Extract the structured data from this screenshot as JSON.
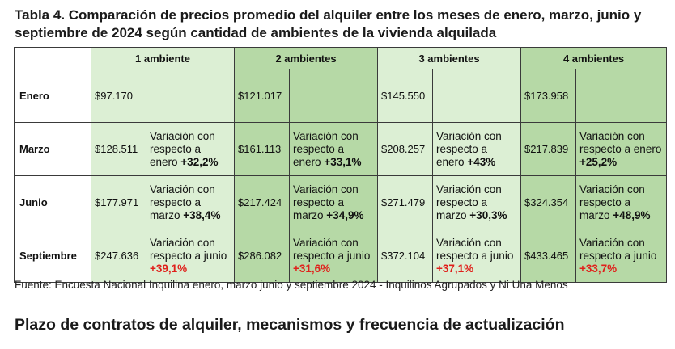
{
  "title": "Tabla 4. Comparación de precios promedio del alquiler entre los meses de enero, marzo, junio y septiembre de 2024 según cantidad de ambientes de la vivienda alquilada",
  "headers": [
    "1 ambiente",
    "2 ambientes",
    "3 ambientes",
    "4 ambientes"
  ],
  "rows": [
    {
      "label": "Enero",
      "cells": [
        {
          "price": "$97.170"
        },
        {
          "price": "$121.017"
        },
        {
          "price": "$145.550"
        },
        {
          "price": "$173.958"
        }
      ]
    },
    {
      "label": "Marzo",
      "cells": [
        {
          "price": "$128.511",
          "var_text": "Variación con respecto a enero",
          "var_value": "+32,2%"
        },
        {
          "price": "$161.113",
          "var_text": "Variación con respecto a enero",
          "var_value": "+33,1%"
        },
        {
          "price": "$208.257",
          "var_text": "Variación con respecto a enero",
          "var_value": "+43%"
        },
        {
          "price": "$217.839",
          "var_text": "Variación con respecto a enero",
          "var_value": "+25,2%"
        }
      ]
    },
    {
      "label": "Junio",
      "cells": [
        {
          "price": "$177.971",
          "var_text": "Variación con respecto a marzo",
          "var_value": "+38,4%"
        },
        {
          "price": "$217.424",
          "var_text": "Variación con respecto a marzo",
          "var_value": "+34,9%"
        },
        {
          "price": "$271.479",
          "var_text": "Variación con respecto a marzo",
          "var_value": "+30,3%"
        },
        {
          "price": "$324.354",
          "var_text": "Variación con respecto a marzo",
          "var_value": "+48,9%"
        }
      ]
    },
    {
      "label": "Septiembre",
      "cells": [
        {
          "price": "$247.636",
          "var_text": "Variación con respecto a junio",
          "var_value": "+39,1%"
        },
        {
          "price": "$286.082",
          "var_text": "Variación con respecto a junio",
          "var_value": "+31,6%"
        },
        {
          "price": "$372.104",
          "var_text": "Variación con respecto a junio",
          "var_value": "+37,1%"
        },
        {
          "price": "$433.465",
          "var_text": "Variación con respecto a junio",
          "var_value": "+33,7%"
        }
      ]
    }
  ],
  "source": "Fuente: Encuesta Nacional Inquilina enero, marzo junio y septiembre 2024 - Inquilinos Agrupados y Ni Una Menos",
  "subtitle": "Plazo de contratos de alquiler, mecanismos y frecuencia de actualización",
  "colors": {
    "light_green": "#dcefd4",
    "dark_green": "#b6d9a6",
    "highlight_red": "#e0201b"
  }
}
